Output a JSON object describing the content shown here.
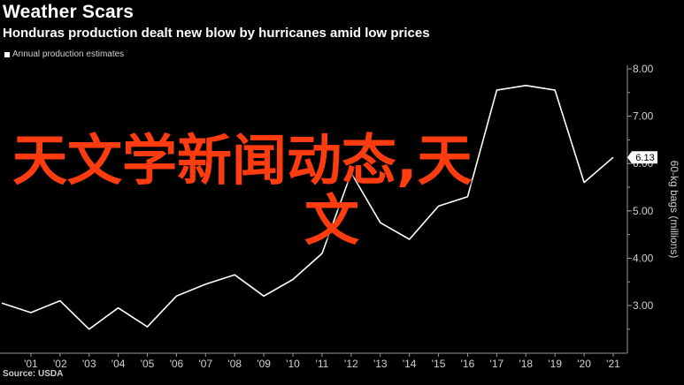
{
  "header": {
    "title": "Weather Scars",
    "subtitle": "Honduras production dealt new blow by hurricanes amid low prices",
    "legend": "Annual production estimates"
  },
  "footer": {
    "source": "Source: USDA"
  },
  "overlay": {
    "line1": "天文学新闻动态,天",
    "line2": "文"
  },
  "chart_data": {
    "type": "line",
    "ylabel": "60-kg bags (millions)",
    "ylim": [
      2.3,
      8.15
    ],
    "yticks": [
      {
        "v": 3,
        "label": "3.00"
      },
      {
        "v": 4,
        "label": "4.00"
      },
      {
        "v": 5,
        "label": "5.00"
      },
      {
        "v": 6,
        "label": "6.00"
      },
      {
        "v": 7,
        "label": "7.00"
      },
      {
        "v": 8,
        "label": "8.00"
      }
    ],
    "xticks": [
      "'01",
      "'02",
      "'03",
      "'04",
      "'05",
      "'06",
      "'07",
      "'08",
      "'09",
      "'10",
      "'11",
      "'12",
      "'13",
      "'14",
      "'15",
      "'16",
      "'17",
      "'18",
      "'19",
      "'20",
      "'21"
    ],
    "x": [
      2000,
      2001,
      2002,
      2003,
      2004,
      2005,
      2006,
      2007,
      2008,
      2009,
      2010,
      2011,
      2012,
      2013,
      2014,
      2015,
      2016,
      2017,
      2018,
      2019,
      2020,
      2021
    ],
    "values": [
      3.05,
      2.85,
      3.1,
      2.5,
      2.95,
      2.55,
      3.2,
      3.45,
      3.65,
      3.2,
      3.55,
      4.1,
      5.8,
      4.75,
      4.4,
      5.1,
      5.3,
      7.55,
      7.65,
      7.55,
      5.6,
      6.13
    ],
    "last_value_label": "6.13",
    "line_color": "#ffffff",
    "grid": false
  }
}
